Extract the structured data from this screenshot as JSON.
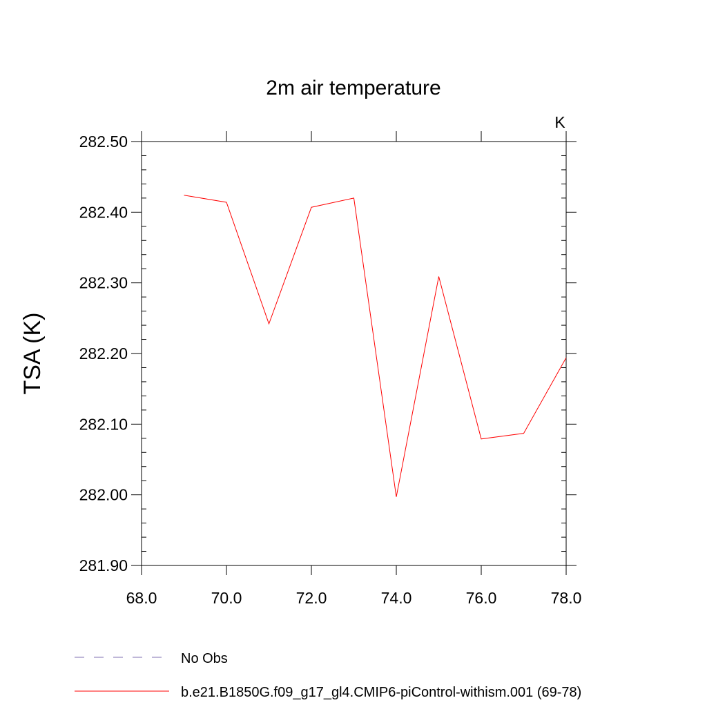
{
  "chart_data": {
    "type": "line",
    "title": "2m air temperature",
    "units_label": "K",
    "xlabel": "",
    "ylabel": "TSA  (K)",
    "xlim": [
      68.0,
      78.0
    ],
    "ylim": [
      281.9,
      282.5
    ],
    "xticks": [
      "68.0",
      "70.0",
      "72.0",
      "74.0",
      "76.0",
      "78.0"
    ],
    "yticks": [
      "281.90",
      "282.00",
      "282.10",
      "282.20",
      "282.30",
      "282.40",
      "282.50"
    ],
    "grid": false,
    "legend_position": "bottom",
    "series": [
      {
        "name": "b.e21.B1850G.f09_g17_gl4.CMIP6-piControl-withism.001 (69-78)",
        "color": "#ff0000",
        "style": "solid",
        "x": [
          69,
          70,
          71,
          72,
          73,
          74,
          75,
          76,
          77,
          78
        ],
        "y": [
          282.424,
          282.414,
          282.242,
          282.407,
          282.42,
          281.997,
          282.309,
          282.079,
          282.087,
          282.194
        ]
      }
    ],
    "legend": [
      {
        "label": "No Obs",
        "color": "#7f6fb0",
        "style": "dashed"
      },
      {
        "label": "b.e21.B1850G.f09_g17_gl4.CMIP6-piControl-withism.001 (69-78)",
        "color": "#ff0000",
        "style": "solid"
      }
    ]
  }
}
